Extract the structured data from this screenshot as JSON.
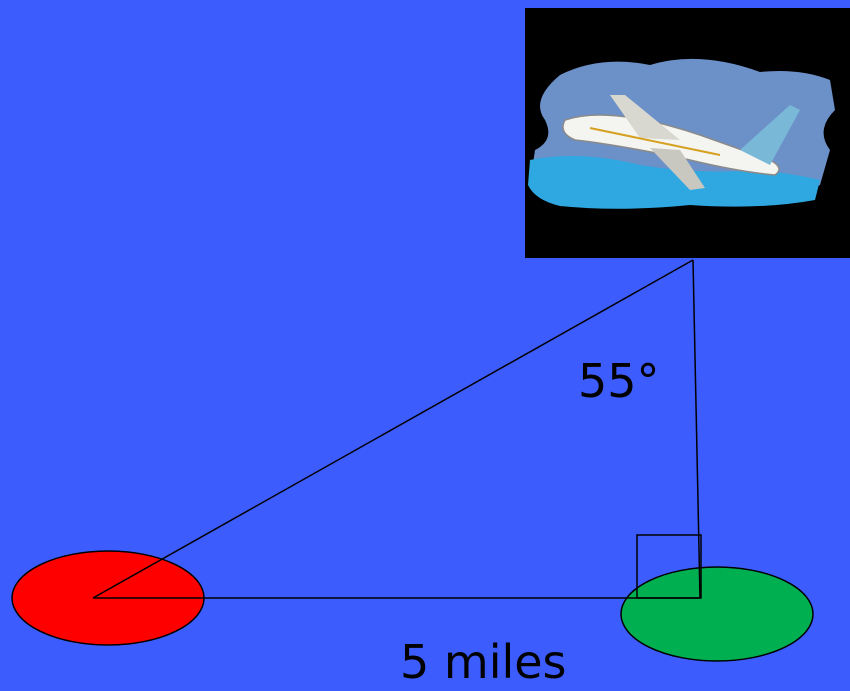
{
  "labels": {
    "angle": "55°",
    "distance": "5 miles"
  }
}
